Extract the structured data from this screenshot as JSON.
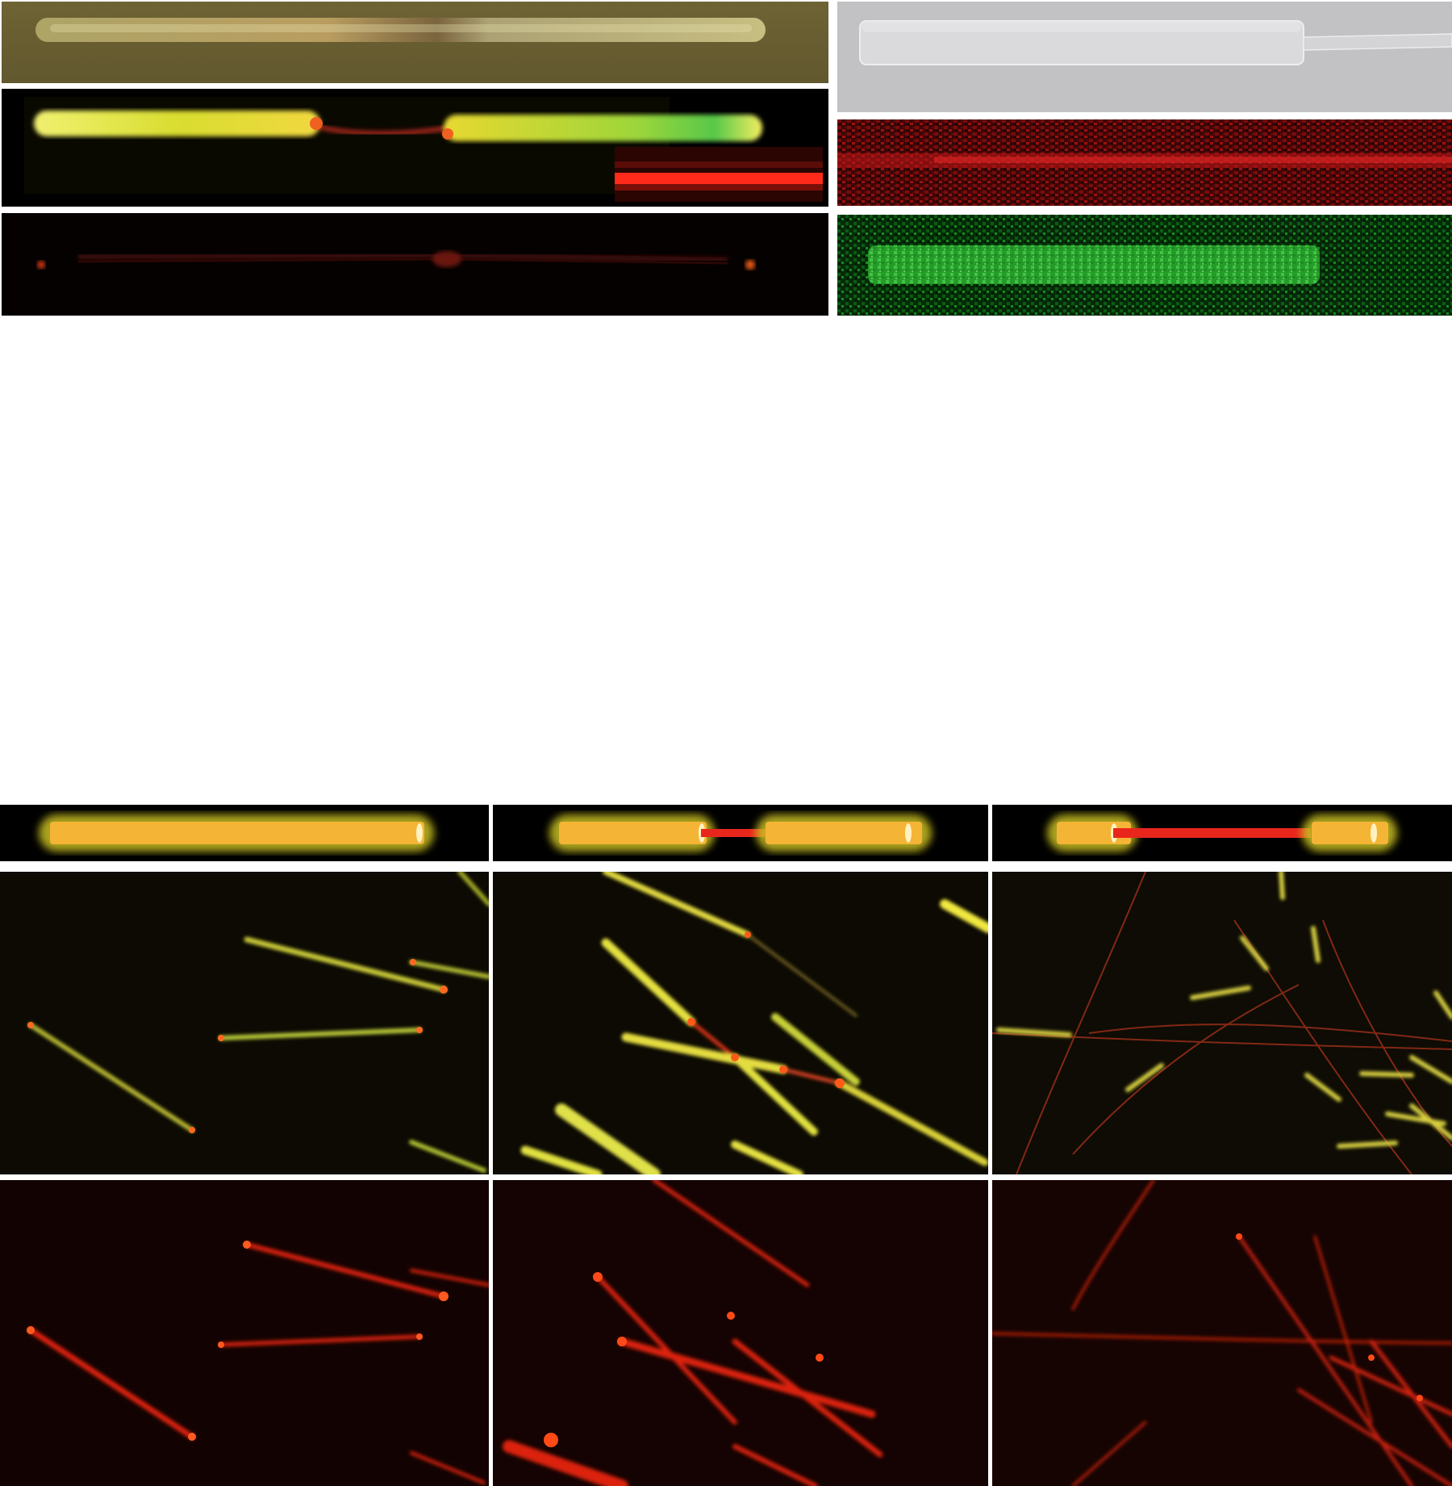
{
  "figure": {
    "top_left_panels": [
      {
        "name": "optical-microscope-nanowire",
        "kind": "bright-field"
      },
      {
        "name": "pl-image-heterostructure-nanowire",
        "kind": "photoluminescence",
        "inset": "red-emission-segment-zoom"
      },
      {
        "name": "pl-image-red-filter-nanowire",
        "kind": "photoluminescence-red"
      }
    ],
    "top_right_panels": [
      {
        "name": "sem-image-nanowire",
        "kind": "electron-micrograph"
      },
      {
        "name": "eds-map-red-element",
        "kind": "elemental-map",
        "color": "#d42020"
      },
      {
        "name": "eds-map-green-element",
        "kind": "elemental-map",
        "color": "#2fd42f"
      }
    ],
    "bottom_columns": [
      {
        "name": "uniform-nanowire",
        "schematic": "single-rod",
        "segments": 1
      },
      {
        "name": "short-gap-heterostructure",
        "schematic": "two-rods-short-bridge",
        "segments": 2
      },
      {
        "name": "long-gap-heterostructure",
        "schematic": "two-rods-long-bridge",
        "segments": 2
      }
    ],
    "colors": {
      "rod": "#f4b435",
      "rod_glow": "#c9c020",
      "bridge": "#e8261c",
      "background": "#000000",
      "pl_dark": "#0c0a02",
      "red_dark": "#120302"
    }
  }
}
